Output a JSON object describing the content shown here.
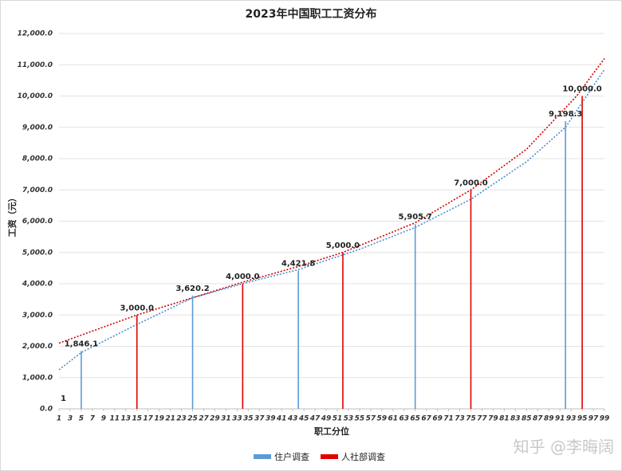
{
  "chart_data": {
    "type": "line-bar",
    "title": "2023年中国职工工资分布",
    "x_label": "职工分位",
    "y_label": "工资（元）",
    "xlim": [
      1,
      99
    ],
    "xticks": [
      1,
      3,
      5,
      7,
      9,
      11,
      13,
      15,
      17,
      19,
      21,
      23,
      25,
      27,
      29,
      31,
      33,
      35,
      37,
      39,
      41,
      43,
      45,
      47,
      49,
      51,
      53,
      55,
      57,
      59,
      61,
      63,
      65,
      67,
      69,
      71,
      73,
      75,
      77,
      79,
      81,
      83,
      85,
      87,
      89,
      91,
      93,
      95,
      97,
      99
    ],
    "ylim": [
      0,
      12000
    ],
    "yticks": [
      {
        "value": 0,
        "label": "0.0"
      },
      {
        "value": 1000,
        "label": "1,000.0"
      },
      {
        "value": 2000,
        "label": "2,000.0"
      },
      {
        "value": 3000,
        "label": "3,000.0"
      },
      {
        "value": 4000,
        "label": "4,000.0"
      },
      {
        "value": 5000,
        "label": "5,000.0"
      },
      {
        "value": 6000,
        "label": "6,000.0"
      },
      {
        "value": 7000,
        "label": "7,000.0"
      },
      {
        "value": 8000,
        "label": "8,000.0"
      },
      {
        "value": 9000,
        "label": "9,000.0"
      },
      {
        "value": 10000,
        "label": "10,000.0"
      },
      {
        "value": 11000,
        "label": "11,000.0"
      },
      {
        "value": 12000,
        "label": "12,000.0"
      }
    ],
    "grid": true,
    "legend": "bottom",
    "series": [
      {
        "name": "住户调查",
        "color": "#5b9bd5",
        "x": [
          5,
          25,
          44,
          65,
          92
        ],
        "values": [
          1846.1,
          3620.2,
          4421.8,
          5905.7,
          9198.3
        ],
        "value_labels": [
          "1,846.1",
          "3,620.2",
          "4,421.8",
          "5,905.7",
          "9,198.3"
        ]
      },
      {
        "name": "人社部调查",
        "color": "#e00000",
        "x": [
          15,
          34,
          52,
          75,
          95
        ],
        "values": [
          3000,
          4000,
          5000,
          7000,
          10000
        ],
        "value_labels": [
          "3,000.0",
          "4,000.0",
          "5,000.0",
          "7,000.0",
          "10,000.0"
        ]
      }
    ],
    "trendlines": [
      {
        "color": "#4a8fd0",
        "x": [
          1,
          5,
          15,
          25,
          35,
          44,
          55,
          65,
          75,
          85,
          92,
          99
        ],
        "values": [
          1250,
          1800,
          2700,
          3550,
          4050,
          4450,
          5100,
          5800,
          6700,
          7900,
          9000,
          10850
        ]
      },
      {
        "color": "#d00000",
        "x": [
          1,
          15,
          25,
          34,
          44,
          52,
          65,
          75,
          85,
          94,
          99
        ],
        "values": [
          2100,
          3000,
          3550,
          4050,
          4550,
          5000,
          5950,
          7000,
          8300,
          10000,
          11200
        ]
      }
    ],
    "annotations": [
      "1"
    ],
    "watermark": "知乎 @李晦阔"
  }
}
